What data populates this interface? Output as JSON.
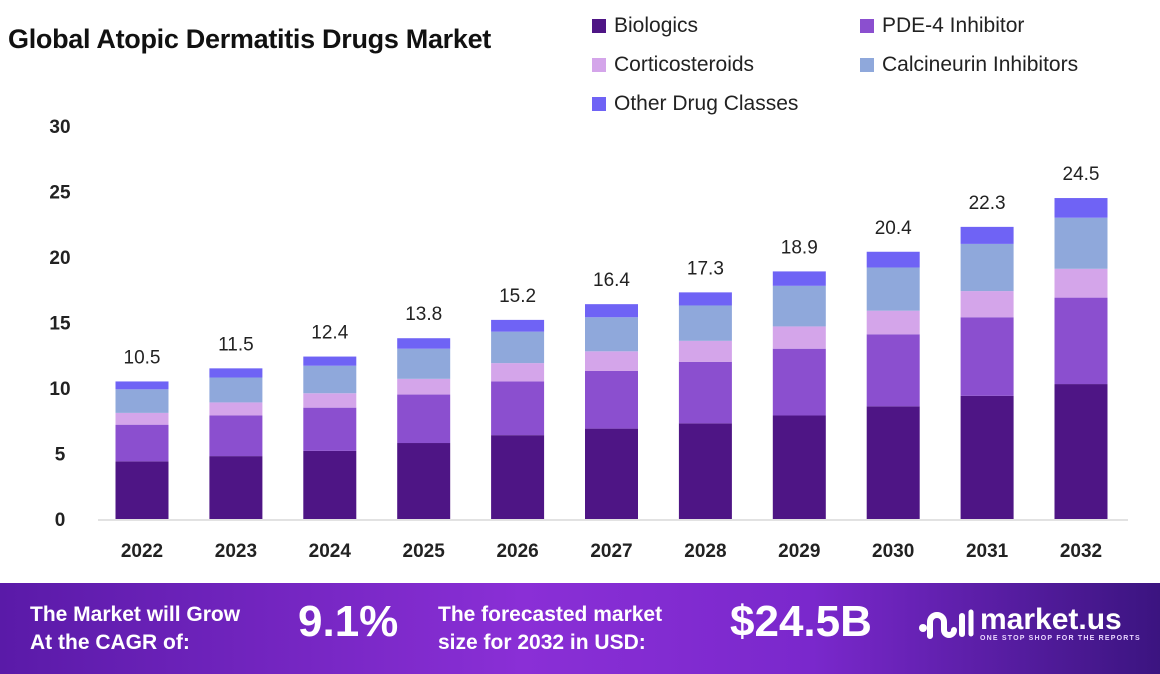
{
  "chart_data": {
    "type": "bar",
    "stacked": true,
    "title": "Global Atopic Dermatitis Drugs Market",
    "xlabel": "",
    "ylabel": "",
    "ylim": [
      0,
      30
    ],
    "yticks": [
      0,
      5,
      10,
      15,
      20,
      25,
      30
    ],
    "grid": false,
    "legend_position": "top-right",
    "categories": [
      "2022",
      "2023",
      "2024",
      "2025",
      "2026",
      "2027",
      "2028",
      "2029",
      "2030",
      "2031",
      "2032"
    ],
    "totals": [
      10.5,
      11.5,
      12.4,
      13.8,
      15.2,
      16.4,
      17.3,
      18.9,
      20.4,
      22.3,
      24.5
    ],
    "series": [
      {
        "name": "Biologics",
        "color": "#4e1585",
        "values": [
          4.4,
          4.8,
          5.2,
          5.8,
          6.4,
          6.9,
          7.3,
          7.9,
          8.6,
          9.4,
          10.3
        ]
      },
      {
        "name": "PDE-4 Inhibitor",
        "color": "#8b4fcf",
        "values": [
          2.8,
          3.1,
          3.3,
          3.7,
          4.1,
          4.4,
          4.7,
          5.1,
          5.5,
          6.0,
          6.6
        ]
      },
      {
        "name": "Corticosteroids",
        "color": "#d4a5ea",
        "values": [
          0.9,
          1.0,
          1.1,
          1.2,
          1.4,
          1.5,
          1.6,
          1.7,
          1.8,
          2.0,
          2.2
        ]
      },
      {
        "name": "Calcineurin Inhibitors",
        "color": "#8fa8db",
        "values": [
          1.8,
          1.9,
          2.1,
          2.3,
          2.4,
          2.6,
          2.7,
          3.1,
          3.3,
          3.6,
          3.9
        ]
      },
      {
        "name": "Other Drug Classes",
        "color": "#6f63f5",
        "values": [
          0.6,
          0.7,
          0.7,
          0.8,
          0.9,
          1.0,
          1.0,
          1.1,
          1.2,
          1.3,
          1.5
        ]
      }
    ]
  },
  "banner": {
    "cagr_label_line1": "The Market will Grow",
    "cagr_label_line2": "At the CAGR of:",
    "cagr_value": "9.1%",
    "forecast_label_line1": "The forecasted market",
    "forecast_label_line2": "size for 2032 in USD:",
    "forecast_value": "$24.5B",
    "logo_name": "market.us",
    "logo_tagline": "ONE STOP SHOP FOR THE REPORTS"
  }
}
